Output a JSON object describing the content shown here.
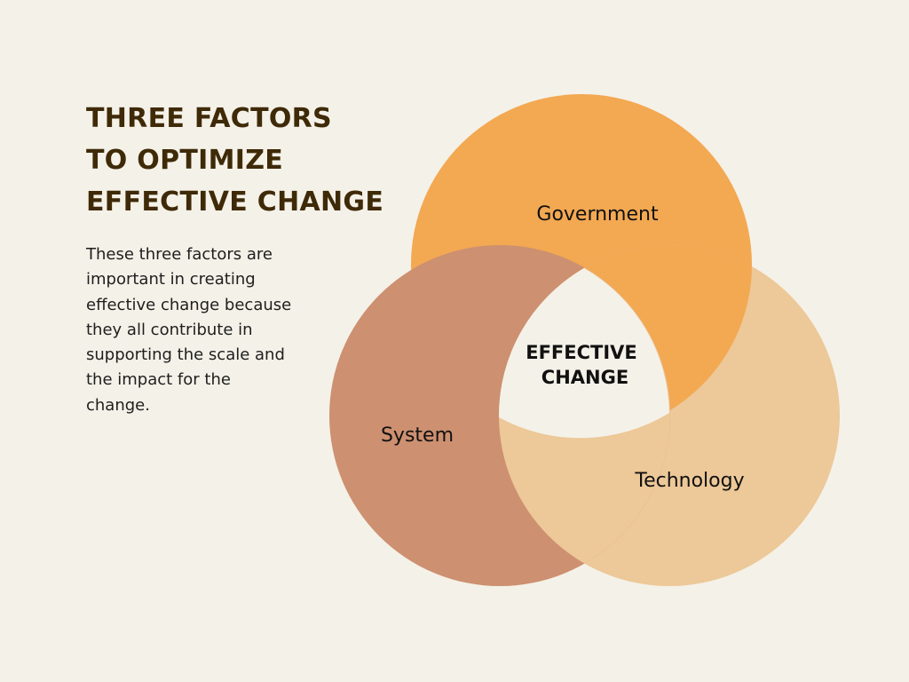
{
  "heading": {
    "lines": [
      "THREE FACTORS",
      "TO OPTIMIZE",
      "EFFECTIVE CHANGE"
    ]
  },
  "description": "These three factors are important in creating effective change because they all contribute in supporting the scale and the impact for the change.",
  "diagram": {
    "center": {
      "line1": "EFFECTIVE",
      "line2": "CHANGE"
    },
    "circles": [
      {
        "label": "Government",
        "color": "#f3a852"
      },
      {
        "label": "System",
        "color": "#cd9070"
      },
      {
        "label": "Technology",
        "color": "#edc898"
      }
    ]
  }
}
